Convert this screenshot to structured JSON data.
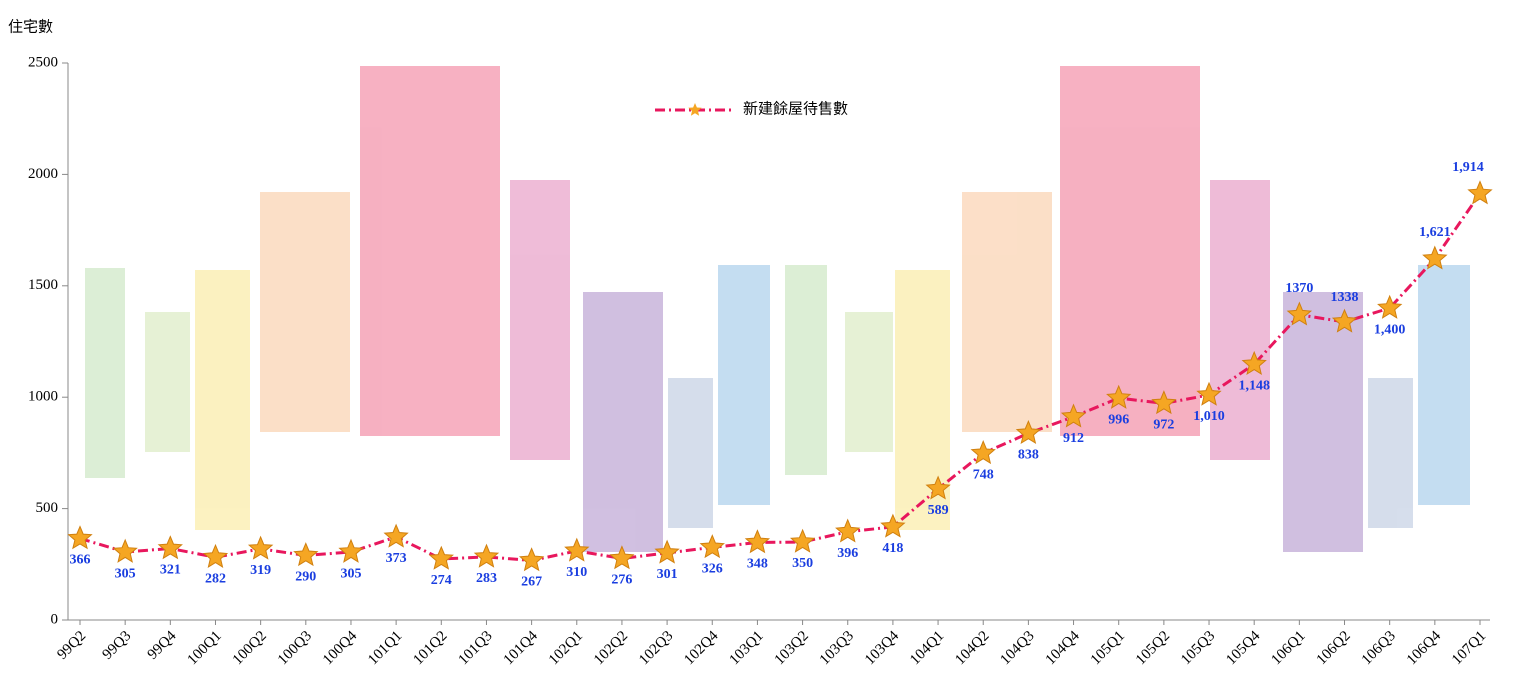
{
  "chart_data": {
    "type": "line",
    "y_label": "住宅數",
    "categories": [
      "99Q2",
      "99Q3",
      "99Q4",
      "100Q1",
      "100Q2",
      "100Q3",
      "100Q4",
      "101Q1",
      "101Q2",
      "101Q3",
      "101Q4",
      "102Q1",
      "102Q2",
      "102Q3",
      "102Q4",
      "103Q1",
      "103Q2",
      "103Q3",
      "103Q4",
      "104Q1",
      "104Q2",
      "104Q3",
      "104Q4",
      "105Q1",
      "105Q2",
      "105Q3",
      "105Q4",
      "106Q1",
      "106Q2",
      "106Q3",
      "106Q4",
      "107Q1"
    ],
    "series": [
      {
        "name": "新建餘屋待售數",
        "color": "#e8175d",
        "marker_color": "#f5a623",
        "values": [
          366,
          305,
          321,
          282,
          319,
          290,
          305,
          373,
          274,
          283,
          267,
          310,
          276,
          301,
          326,
          348,
          350,
          396,
          418,
          589,
          748,
          838,
          912,
          996,
          972,
          1010,
          1148,
          1370,
          1338,
          1400,
          1621,
          1914
        ],
        "value_labels": [
          "366",
          "305",
          "321",
          "282",
          "319",
          "290",
          "305",
          "373",
          "274",
          "283",
          "267",
          "310",
          "276",
          "301",
          "326",
          "348",
          "350",
          "396",
          "418",
          "589",
          "748",
          "838",
          "912",
          "996",
          "972",
          "1,010",
          "1,148",
          "1370",
          "1338",
          "1,400",
          "1,621",
          "1,914"
        ]
      }
    ],
    "ylim": [
      0,
      2500
    ],
    "yticks": [
      0,
      500,
      1000,
      1500,
      2000,
      2500
    ]
  }
}
